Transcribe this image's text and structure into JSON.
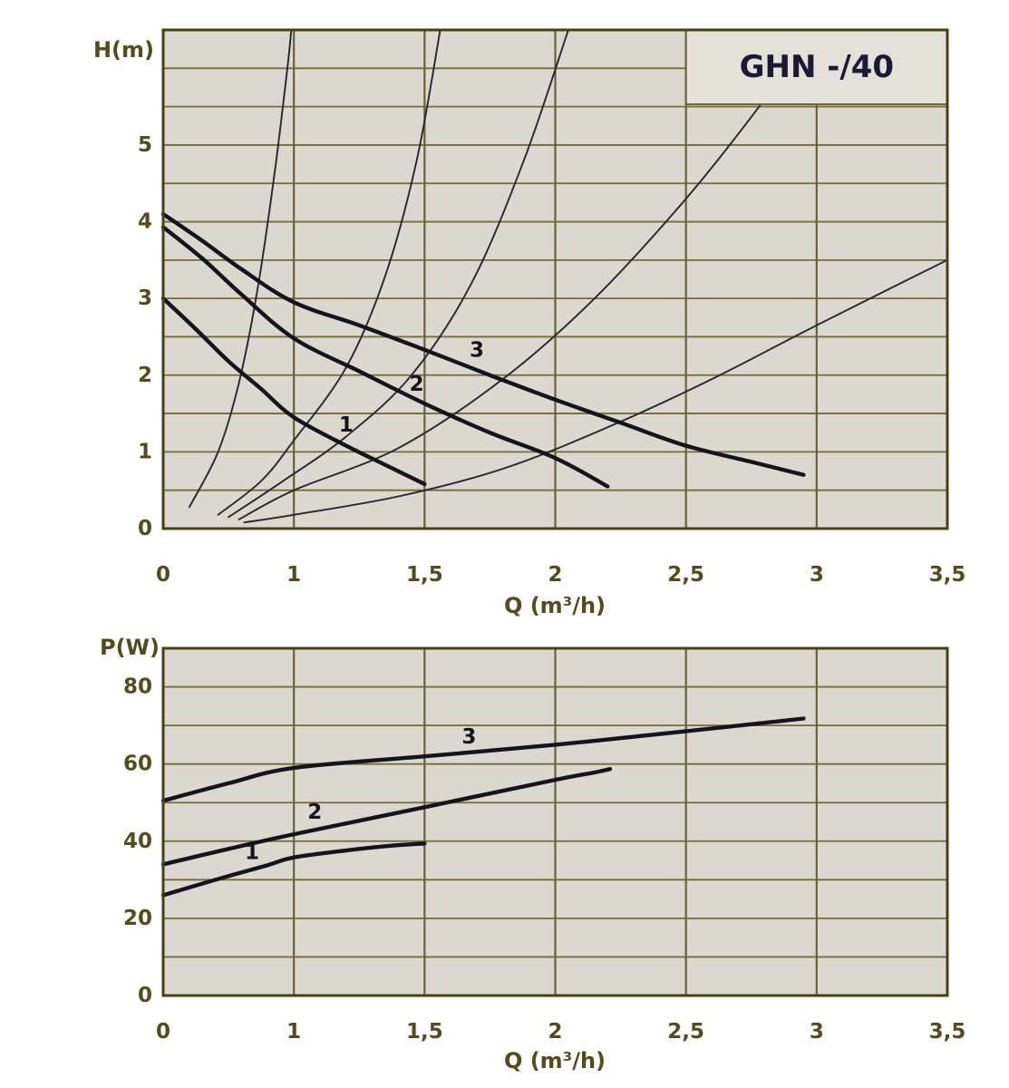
{
  "figure": {
    "title": "GHN -/40"
  },
  "colors": {
    "page_bg": "#ffffff",
    "plot_bg": "#dad8cf",
    "grid_horizontal": "#756b3c",
    "grid_vertical": "#6b6234",
    "border": "#473f16",
    "axis_text": "#544b1e",
    "pump_curve": "#14141d",
    "system_curve": "#26262e",
    "title_text": "#1a1a33",
    "title_box_bg": "#e3e1d8"
  },
  "chart_data": [
    {
      "id": "head",
      "type": "line",
      "title": "GHN -/40",
      "x_label": "Q (m³/h)",
      "y_label": "H(m)",
      "x_tick_labels": [
        "0",
        "1",
        "1,5",
        "2",
        "2,5",
        "3",
        "3,5"
      ],
      "x_tick_values": [
        0,
        1,
        1.5,
        2,
        2.5,
        3,
        3.5
      ],
      "ylim": [
        0,
        6.5
      ],
      "y_minor_step": 0.5,
      "y_tick_values": [
        0,
        1,
        2,
        3,
        4,
        5
      ],
      "grid": "on",
      "title_box": {
        "q0": 2.5,
        "q1": 3.5,
        "v0": 5.53,
        "v1": 6.5
      },
      "series": [
        {
          "name": "speed-1",
          "label": "1",
          "points": [
            [
              0,
              3.0
            ],
            [
              0.25,
              2.6
            ],
            [
              0.5,
              2.18
            ],
            [
              0.75,
              1.82
            ],
            [
              1,
              1.45
            ],
            [
              1.2,
              1.08
            ],
            [
              1.35,
              0.83
            ],
            [
              1.5,
              0.58
            ]
          ]
        },
        {
          "name": "speed-2",
          "label": "2",
          "points": [
            [
              0,
              3.93
            ],
            [
              0.3,
              3.52
            ],
            [
              0.6,
              3.05
            ],
            [
              1,
              2.48
            ],
            [
              1.25,
              2.05
            ],
            [
              1.5,
              1.63
            ],
            [
              1.75,
              1.25
            ],
            [
              2,
              0.92
            ],
            [
              2.2,
              0.55
            ]
          ]
        },
        {
          "name": "speed-3",
          "label": "3",
          "points": [
            [
              0,
              4.1
            ],
            [
              0.3,
              3.75
            ],
            [
              0.6,
              3.38
            ],
            [
              1,
              2.95
            ],
            [
              1.25,
              2.65
            ],
            [
              1.5,
              2.33
            ],
            [
              1.75,
              2.0
            ],
            [
              2,
              1.68
            ],
            [
              2.25,
              1.38
            ],
            [
              2.5,
              1.08
            ],
            [
              2.75,
              0.87
            ],
            [
              2.95,
              0.7
            ]
          ]
        }
      ],
      "system_curves": [
        [
          [
            0.2,
            0.28
          ],
          [
            0.42,
            1.0
          ],
          [
            0.58,
            1.9
          ],
          [
            0.72,
            3.1
          ],
          [
            0.85,
            4.6
          ],
          [
            0.95,
            6.0
          ],
          [
            0.98,
            6.5
          ]
        ],
        [
          [
            0.42,
            0.18
          ],
          [
            0.75,
            0.62
          ],
          [
            1.0,
            1.15
          ],
          [
            1.2,
            2.1
          ],
          [
            1.35,
            3.3
          ],
          [
            1.47,
            4.8
          ],
          [
            1.56,
            6.5
          ]
        ],
        [
          [
            0.5,
            0.15
          ],
          [
            0.9,
            0.6
          ],
          [
            1.2,
            1.2
          ],
          [
            1.45,
            2.0
          ],
          [
            1.68,
            3.2
          ],
          [
            1.88,
            4.8
          ],
          [
            2.05,
            6.5
          ]
        ],
        [
          [
            0.58,
            0.12
          ],
          [
            1.0,
            0.5
          ],
          [
            1.4,
            1.05
          ],
          [
            1.8,
            1.95
          ],
          [
            2.15,
            3.0
          ],
          [
            2.5,
            4.3
          ],
          [
            2.78,
            5.5
          ],
          [
            2.9,
            6.1
          ]
        ],
        [
          [
            0.62,
            0.08
          ],
          [
            1.0,
            0.18
          ],
          [
            1.4,
            0.42
          ],
          [
            1.8,
            0.78
          ],
          [
            2.2,
            1.32
          ],
          [
            2.6,
            1.95
          ],
          [
            3.0,
            2.65
          ],
          [
            3.5,
            3.5
          ]
        ]
      ],
      "curve_labels": [
        {
          "text": "1",
          "q": 1.2,
          "v": 1.35
        },
        {
          "text": "2",
          "q": 1.47,
          "v": 1.88
        },
        {
          "text": "3",
          "q": 1.7,
          "v": 2.32
        }
      ]
    },
    {
      "id": "power",
      "type": "line",
      "title": "",
      "x_label": "Q (m³/h)",
      "y_label": "P(W)",
      "x_tick_labels": [
        "0",
        "1",
        "1,5",
        "2",
        "2,5",
        "3",
        "3,5"
      ],
      "x_tick_values": [
        0,
        1,
        1.5,
        2,
        2.5,
        3,
        3.5
      ],
      "ylim": [
        0,
        90
      ],
      "y_minor_step": 10,
      "y_tick_values": [
        0,
        20,
        40,
        60,
        80
      ],
      "grid": "on",
      "series": [
        {
          "name": "speed-1",
          "label": "1",
          "points": [
            [
              0,
              26
            ],
            [
              0.4,
              30
            ],
            [
              0.8,
              33.8
            ],
            [
              1,
              35.8
            ],
            [
              1.2,
              37.6
            ],
            [
              1.35,
              38.7
            ],
            [
              1.5,
              39.4
            ]
          ]
        },
        {
          "name": "speed-2",
          "label": "2",
          "points": [
            [
              0,
              34
            ],
            [
              0.5,
              38
            ],
            [
              1,
              41.8
            ],
            [
              1.5,
              48.8
            ],
            [
              2,
              55.9
            ],
            [
              2.15,
              57.8
            ],
            [
              2.21,
              58.7
            ]
          ]
        },
        {
          "name": "speed-3",
          "label": "3",
          "points": [
            [
              0,
              50.5
            ],
            [
              0.5,
              55
            ],
            [
              1,
              59
            ],
            [
              1.5,
              62
            ],
            [
              2,
              65
            ],
            [
              2.5,
              68.5
            ],
            [
              2.95,
              71.8
            ]
          ]
        }
      ],
      "system_curves": [],
      "curve_labels": [
        {
          "text": "1",
          "q": 0.68,
          "v": 37
        },
        {
          "text": "2",
          "q": 1.08,
          "v": 47.5
        },
        {
          "text": "3",
          "q": 1.67,
          "v": 67
        }
      ]
    }
  ]
}
